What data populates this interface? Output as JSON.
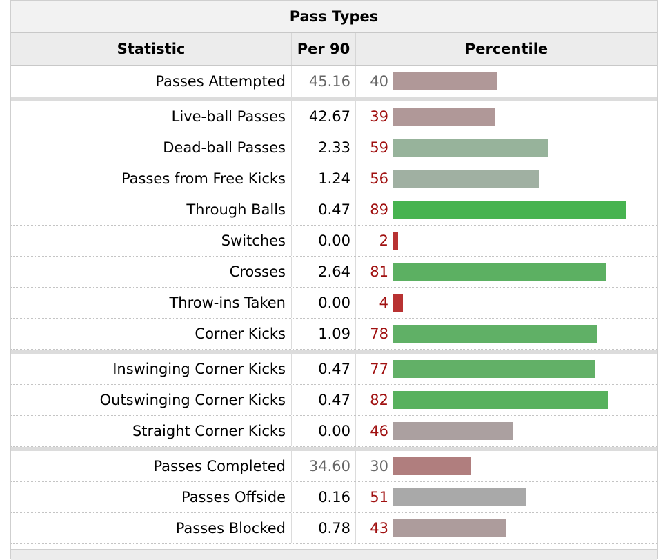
{
  "caption": "Pass Types",
  "headers": {
    "statistic": "Statistic",
    "per90": "Per 90",
    "percentile": "Percentile"
  },
  "chart_data": {
    "type": "bar",
    "title": "Pass Types",
    "columns": [
      "Statistic",
      "Per 90",
      "Percentile"
    ],
    "xlim": [
      0,
      100
    ],
    "rows": [
      {
        "statistic": "Passes Attempted",
        "per90": "45.16",
        "percentile": 40,
        "color": "#b09898",
        "muted": true,
        "group_start": false
      },
      {
        "statistic": "Live-ball Passes",
        "per90": "42.67",
        "percentile": 39,
        "color": "#b09898",
        "muted": false,
        "group_start": true
      },
      {
        "statistic": "Dead-ball Passes",
        "per90": "2.33",
        "percentile": 59,
        "color": "#97b39b",
        "muted": false,
        "group_start": false
      },
      {
        "statistic": "Passes from Free Kicks",
        "per90": "1.24",
        "percentile": 56,
        "color": "#a0b0a2",
        "muted": false,
        "group_start": false
      },
      {
        "statistic": "Through Balls",
        "per90": "0.47",
        "percentile": 89,
        "color": "#47b350",
        "muted": false,
        "group_start": false
      },
      {
        "statistic": "Switches",
        "per90": "0.00",
        "percentile": 2,
        "color": "#b83232",
        "muted": false,
        "group_start": false
      },
      {
        "statistic": "Crosses",
        "per90": "2.64",
        "percentile": 81,
        "color": "#5cb062",
        "muted": false,
        "group_start": false
      },
      {
        "statistic": "Throw-ins Taken",
        "per90": "0.00",
        "percentile": 4,
        "color": "#b83232",
        "muted": false,
        "group_start": false
      },
      {
        "statistic": "Corner Kicks",
        "per90": "1.09",
        "percentile": 78,
        "color": "#60b066",
        "muted": false,
        "group_start": false
      },
      {
        "statistic": "Inswinging Corner Kicks",
        "per90": "0.47",
        "percentile": 77,
        "color": "#62b067",
        "muted": false,
        "group_start": true
      },
      {
        "statistic": "Outswinging Corner Kicks",
        "per90": "0.47",
        "percentile": 82,
        "color": "#58b15e",
        "muted": false,
        "group_start": false
      },
      {
        "statistic": "Straight Corner Kicks",
        "per90": "0.00",
        "percentile": 46,
        "color": "#aba0a0",
        "muted": false,
        "group_start": false
      },
      {
        "statistic": "Passes Completed",
        "per90": "34.60",
        "percentile": 30,
        "color": "#b07e7e",
        "muted": true,
        "group_start": true
      },
      {
        "statistic": "Passes Offside",
        "per90": "0.16",
        "percentile": 51,
        "color": "#a9a9a9",
        "muted": false,
        "group_start": false
      },
      {
        "statistic": "Passes Blocked",
        "per90": "0.78",
        "percentile": 43,
        "color": "#ad9c9c",
        "muted": false,
        "group_start": false
      }
    ]
  }
}
